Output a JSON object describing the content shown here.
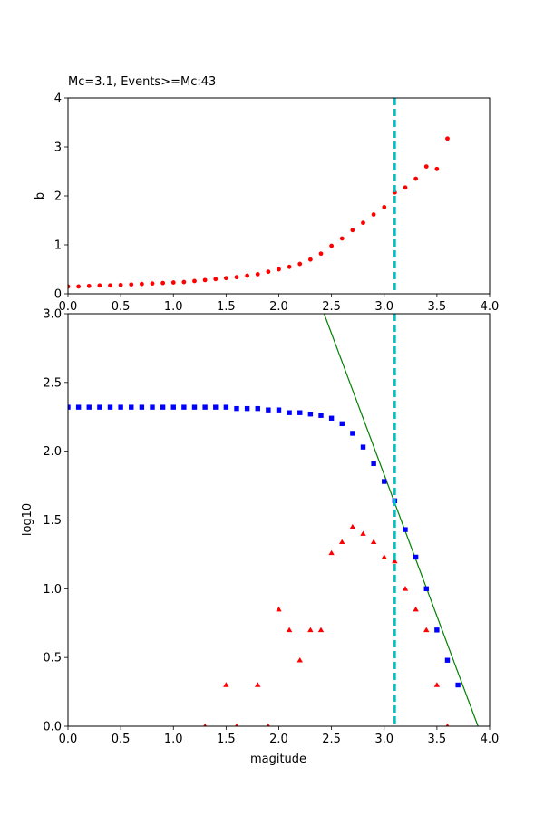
{
  "chart_data": [
    {
      "type": "scatter",
      "title": "Mc=3.1, Events>=Mc:43",
      "xlabel": "",
      "ylabel": "b",
      "xlim": [
        0,
        4
      ],
      "ylim": [
        0,
        4
      ],
      "xticks": [
        "0.0",
        "0.5",
        "1.0",
        "1.5",
        "2.0",
        "2.5",
        "3.0",
        "3.5",
        "4.0"
      ],
      "yticks": [
        "0",
        "1",
        "2",
        "3",
        "4"
      ],
      "series": [
        {
          "color": "#ff0000",
          "marker": "circle",
          "x": [
            0.0,
            0.1,
            0.2,
            0.3,
            0.4,
            0.5,
            0.6,
            0.7,
            0.8,
            0.9,
            1.0,
            1.1,
            1.2,
            1.3,
            1.4,
            1.5,
            1.6,
            1.7,
            1.8,
            1.9,
            2.0,
            2.1,
            2.2,
            2.3,
            2.4,
            2.5,
            2.6,
            2.7,
            2.8,
            2.9,
            3.0,
            3.1,
            3.2,
            3.3,
            3.4,
            3.5,
            3.6
          ],
          "y": [
            0.15,
            0.15,
            0.16,
            0.17,
            0.17,
            0.18,
            0.19,
            0.2,
            0.21,
            0.22,
            0.23,
            0.24,
            0.26,
            0.28,
            0.3,
            0.32,
            0.34,
            0.37,
            0.4,
            0.45,
            0.5,
            0.55,
            0.61,
            0.7,
            0.82,
            0.98,
            1.13,
            1.3,
            1.45,
            1.62,
            1.77,
            2.07,
            2.17,
            2.35,
            2.6,
            2.55,
            3.17
          ]
        }
      ],
      "vline": {
        "x": 3.1,
        "color": "#00bfbf",
        "style": "dashed"
      }
    },
    {
      "type": "scatter",
      "title": "",
      "xlabel": "magitude",
      "ylabel": "log10",
      "xlim": [
        0,
        4
      ],
      "ylim": [
        0,
        3
      ],
      "xticks": [
        "0.0",
        "0.5",
        "1.0",
        "1.5",
        "2.0",
        "2.5",
        "3.0",
        "3.5",
        "4.0"
      ],
      "yticks": [
        "0.0",
        "0.5",
        "1.0",
        "1.5",
        "2.0",
        "2.5",
        "3.0"
      ],
      "series": [
        {
          "color": "#0000ff",
          "marker": "square",
          "x": [
            0.0,
            0.1,
            0.2,
            0.3,
            0.4,
            0.5,
            0.6,
            0.7,
            0.8,
            0.9,
            1.0,
            1.1,
            1.2,
            1.3,
            1.4,
            1.5,
            1.6,
            1.7,
            1.8,
            1.9,
            2.0,
            2.1,
            2.2,
            2.3,
            2.4,
            2.5,
            2.6,
            2.7,
            2.8,
            2.9,
            3.0,
            3.1,
            3.2,
            3.3,
            3.4,
            3.5,
            3.6,
            3.7
          ],
          "y": [
            2.32,
            2.32,
            2.32,
            2.32,
            2.32,
            2.32,
            2.32,
            2.32,
            2.32,
            2.32,
            2.32,
            2.32,
            2.32,
            2.32,
            2.32,
            2.32,
            2.31,
            2.31,
            2.31,
            2.3,
            2.3,
            2.28,
            2.28,
            2.27,
            2.26,
            2.24,
            2.2,
            2.13,
            2.03,
            1.91,
            1.78,
            1.64,
            1.43,
            1.23,
            1.0,
            0.7,
            0.48,
            0.3
          ]
        },
        {
          "color": "#ff0000",
          "marker": "triangle",
          "x": [
            1.3,
            1.5,
            1.6,
            1.8,
            1.9,
            2.0,
            2.1,
            2.2,
            2.3,
            2.4,
            2.5,
            2.6,
            2.7,
            2.8,
            2.9,
            3.0,
            3.1,
            3.2,
            3.3,
            3.4,
            3.5,
            3.6
          ],
          "y": [
            0.0,
            0.3,
            0.0,
            0.3,
            0.0,
            0.85,
            0.7,
            0.48,
            0.7,
            0.7,
            1.26,
            1.34,
            1.45,
            1.4,
            1.34,
            1.23,
            1.2,
            1.0,
            0.85,
            0.7,
            0.3,
            0.0
          ]
        }
      ],
      "fit_line": {
        "x": [
          2.43,
          3.89
        ],
        "y": [
          3.0,
          0.0
        ],
        "color": "#008000"
      },
      "vline": {
        "x": 3.1,
        "color": "#00bfbf",
        "style": "dashed"
      }
    }
  ]
}
